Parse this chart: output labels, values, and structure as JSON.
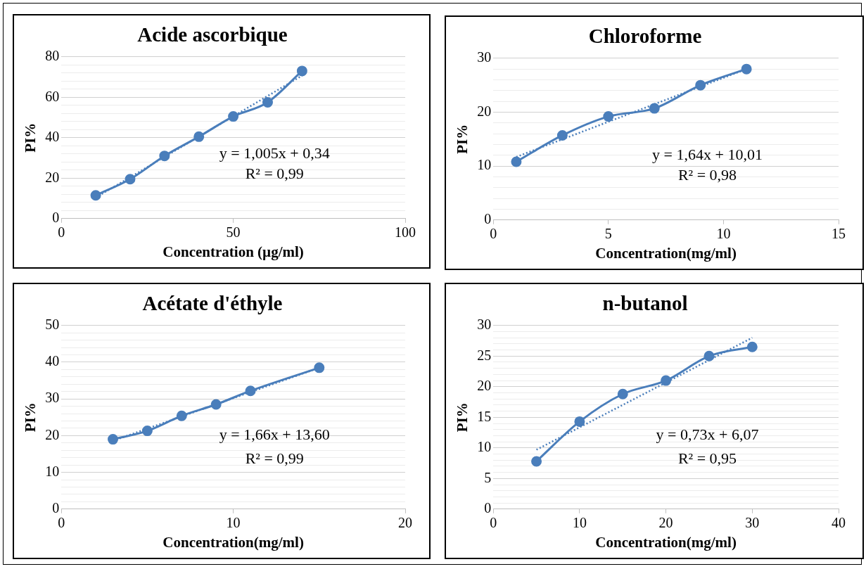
{
  "chart_data": [
    {
      "type": "line",
      "title": "Acide ascorbique",
      "xlabel": "Concentration (µg/ml)",
      "ylabel": "PI%",
      "xlim": [
        0,
        100
      ],
      "xticks": [
        0,
        50,
        100
      ],
      "ylim": [
        0,
        80
      ],
      "yticks": [
        0,
        {
          "value": 4,
          "label": null
        },
        {
          "value": 8,
          "label": null
        },
        {
          "value": 12,
          "label": null
        },
        {
          "value": 16,
          "label": null
        },
        20,
        {
          "value": 24,
          "label": null
        },
        {
          "value": 28,
          "label": null
        },
        {
          "value": 32,
          "label": null
        },
        {
          "value": 36,
          "label": null
        },
        40,
        {
          "value": 44,
          "label": null
        },
        {
          "value": 48,
          "label": null
        },
        {
          "value": 52,
          "label": null
        },
        {
          "value": 56,
          "label": null
        },
        60,
        {
          "value": 64,
          "label": null
        },
        {
          "value": 68,
          "label": null
        },
        {
          "value": 72,
          "label": null
        },
        {
          "value": 76,
          "label": null
        },
        80
      ],
      "grid": "y",
      "legend": false,
      "series": [
        {
          "color": "#4a7ebb",
          "marker": "circle",
          "line_style": "solid",
          "x": [
            10,
            20,
            30,
            40,
            50,
            60,
            70
          ],
          "values": [
            11.5,
            19.5,
            31,
            40.5,
            50.5,
            57.5,
            73
          ]
        },
        {
          "color": "#4a7ebb",
          "marker": "none",
          "line_style": "dotted",
          "x": [
            10,
            70
          ],
          "values": [
            10.4,
            70.7
          ]
        }
      ],
      "annotations": [
        "y = 1,005x + 0,34",
        "R² = 0,99"
      ]
    },
    {
      "type": "line",
      "title": "Chloroforme",
      "xlabel": "Concentration(mg/ml)",
      "ylabel": "PI%",
      "xlim": [
        0,
        15
      ],
      "xticks": [
        0,
        5,
        10,
        15
      ],
      "ylim": [
        0,
        30
      ],
      "yticks": [
        0,
        {
          "value": 2,
          "label": null
        },
        {
          "value": 4,
          "label": null
        },
        {
          "value": 6,
          "label": null
        },
        {
          "value": 8,
          "label": null
        },
        10,
        {
          "value": 12,
          "label": null
        },
        {
          "value": 14,
          "label": null
        },
        {
          "value": 16,
          "label": null
        },
        {
          "value": 18,
          "label": null
        },
        20,
        {
          "value": 22,
          "label": null
        },
        {
          "value": 24,
          "label": null
        },
        {
          "value": 26,
          "label": null
        },
        {
          "value": 28,
          "label": null
        },
        30
      ],
      "grid": "y",
      "legend": false,
      "series": [
        {
          "color": "#4a7ebb",
          "marker": "circle",
          "line_style": "solid",
          "x": [
            1,
            3,
            5,
            7,
            9,
            11
          ],
          "values": [
            10.8,
            15.7,
            19.2,
            20.7,
            25,
            28
          ]
        },
        {
          "color": "#4a7ebb",
          "marker": "none",
          "line_style": "dotted",
          "x": [
            1,
            11
          ],
          "values": [
            11.7,
            28
          ]
        }
      ],
      "annotations": [
        "y = 1,64x + 10,01",
        "R² = 0,98"
      ]
    },
    {
      "type": "line",
      "title": "Acétate d'éthyle",
      "xlabel": "Concentration(mg/ml)",
      "ylabel": "PI%",
      "xlim": [
        0,
        20
      ],
      "xticks": [
        0,
        10,
        20
      ],
      "ylim": [
        0,
        50
      ],
      "yticks": [
        0,
        {
          "value": 2,
          "label": null
        },
        {
          "value": 4,
          "label": null
        },
        {
          "value": 6,
          "label": null
        },
        {
          "value": 8,
          "label": null
        },
        10,
        {
          "value": 12,
          "label": null
        },
        {
          "value": 14,
          "label": null
        },
        {
          "value": 16,
          "label": null
        },
        {
          "value": 18,
          "label": null
        },
        20,
        {
          "value": 22,
          "label": null
        },
        {
          "value": 24,
          "label": null
        },
        {
          "value": 26,
          "label": null
        },
        {
          "value": 28,
          "label": null
        },
        30,
        {
          "value": 32,
          "label": null
        },
        {
          "value": 34,
          "label": null
        },
        {
          "value": 36,
          "label": null
        },
        {
          "value": 38,
          "label": null
        },
        40,
        {
          "value": 42,
          "label": null
        },
        {
          "value": 44,
          "label": null
        },
        {
          "value": 46,
          "label": null
        },
        {
          "value": 48,
          "label": null
        },
        50
      ],
      "grid": "y",
      "legend": false,
      "series": [
        {
          "color": "#4a7ebb",
          "marker": "circle",
          "line_style": "solid",
          "x": [
            3,
            5,
            7,
            9,
            11,
            15
          ],
          "values": [
            19,
            21.3,
            25.4,
            28.5,
            32.2,
            38.5
          ]
        },
        {
          "color": "#4a7ebb",
          "marker": "none",
          "line_style": "dotted",
          "x": [
            3,
            15
          ],
          "values": [
            18.6,
            38.5
          ]
        }
      ],
      "annotations": [
        "y = 1,66x + 13,60",
        "R² = 0,99"
      ]
    },
    {
      "type": "line",
      "title": "n-butanol",
      "xlabel": "Concentration(mg/ml)",
      "ylabel": "PI%",
      "xlim": [
        0,
        40
      ],
      "xticks": [
        0,
        10,
        20,
        30,
        40
      ],
      "ylim": [
        0,
        30
      ],
      "yticks": [
        0,
        {
          "value": 1,
          "label": null
        },
        {
          "value": 2,
          "label": null
        },
        {
          "value": 3,
          "label": null
        },
        {
          "value": 4,
          "label": null
        },
        5,
        {
          "value": 6,
          "label": null
        },
        {
          "value": 7,
          "label": null
        },
        {
          "value": 8,
          "label": null
        },
        {
          "value": 9,
          "label": null
        },
        10,
        {
          "value": 11,
          "label": null
        },
        {
          "value": 12,
          "label": null
        },
        {
          "value": 13,
          "label": null
        },
        {
          "value": 14,
          "label": null
        },
        15,
        {
          "value": 16,
          "label": null
        },
        {
          "value": 17,
          "label": null
        },
        {
          "value": 18,
          "label": null
        },
        {
          "value": 19,
          "label": null
        },
        20,
        {
          "value": 21,
          "label": null
        },
        {
          "value": 22,
          "label": null
        },
        {
          "value": 23,
          "label": null
        },
        {
          "value": 24,
          "label": null
        },
        25,
        {
          "value": 26,
          "label": null
        },
        {
          "value": 27,
          "label": null
        },
        {
          "value": 28,
          "label": null
        },
        {
          "value": 29,
          "label": null
        },
        30
      ],
      "grid": "y",
      "legend": false,
      "series": [
        {
          "color": "#4a7ebb",
          "marker": "circle",
          "line_style": "solid",
          "x": [
            5,
            10,
            15,
            20,
            25,
            30
          ],
          "values": [
            7.8,
            14.3,
            18.8,
            21,
            25,
            26.5
          ]
        },
        {
          "color": "#4a7ebb",
          "marker": "none",
          "line_style": "dotted",
          "x": [
            5,
            30
          ],
          "values": [
            9.7,
            28
          ]
        }
      ],
      "annotations": [
        "y = 0,73x + 6,07",
        "R² = 0,95"
      ]
    }
  ]
}
